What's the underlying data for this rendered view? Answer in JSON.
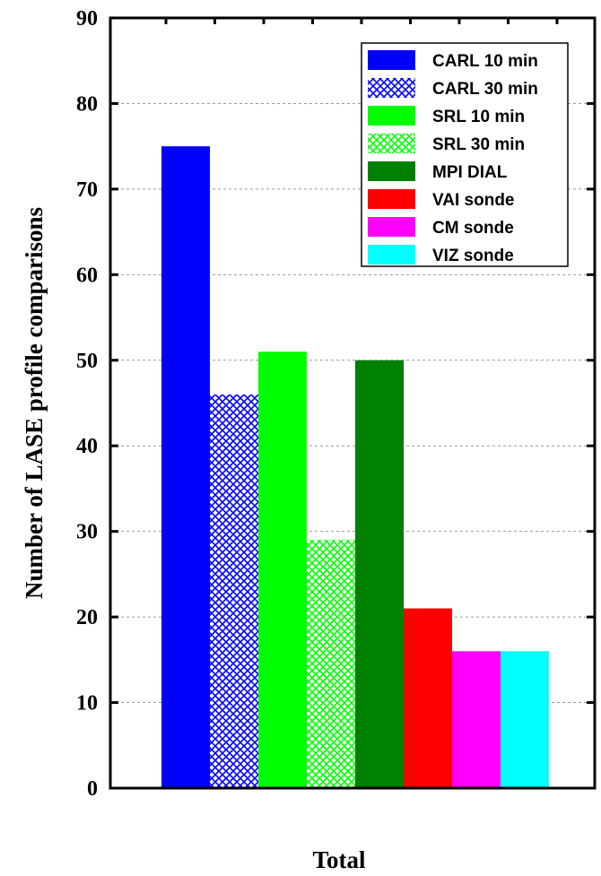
{
  "chart_data": {
    "type": "bar",
    "categories": [
      "Total"
    ],
    "series": [
      {
        "name": "CARL 10 min",
        "values": [
          75
        ],
        "color": "#0000ff",
        "pattern": "solid"
      },
      {
        "name": "CARL 30 min",
        "values": [
          46
        ],
        "color": "#0000ff",
        "pattern": "crosshatch"
      },
      {
        "name": "SRL 10 min",
        "values": [
          51
        ],
        "color": "#00ff00",
        "pattern": "solid"
      },
      {
        "name": "SRL 30 min",
        "values": [
          29
        ],
        "color": "#00ff00",
        "pattern": "crosshatch"
      },
      {
        "name": "MPI DIAL",
        "values": [
          50
        ],
        "color": "#008000",
        "pattern": "solid"
      },
      {
        "name": "VAI sonde",
        "values": [
          21
        ],
        "color": "#ff0000",
        "pattern": "solid"
      },
      {
        "name": "CM sonde",
        "values": [
          16
        ],
        "color": "#ff00ff",
        "pattern": "solid"
      },
      {
        "name": "VIZ sonde",
        "values": [
          16
        ],
        "color": "#00ffff",
        "pattern": "solid"
      }
    ],
    "title": "",
    "xlabel": "Total",
    "ylabel": "Number of LASE profile comparisons",
    "ylim": [
      0,
      90
    ],
    "yticks": [
      0,
      10,
      20,
      30,
      40,
      50,
      60,
      70,
      80,
      90
    ],
    "grid": true,
    "legend_position": "top-right"
  }
}
